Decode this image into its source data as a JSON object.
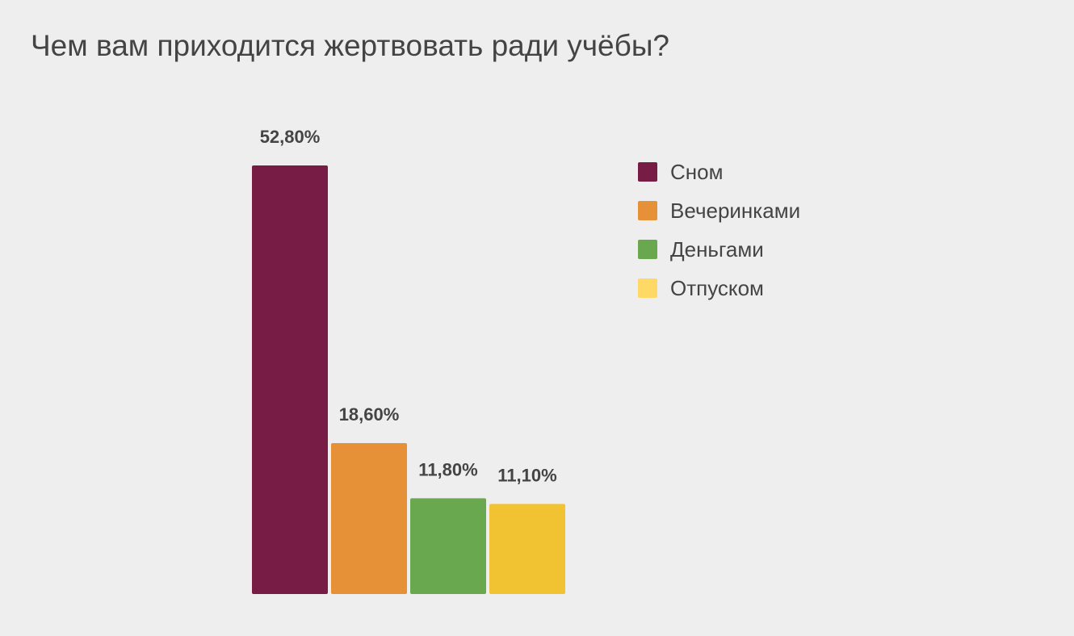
{
  "chart_data": {
    "type": "bar",
    "title": "Чем вам приходится жертвовать ради учёбы?",
    "xlabel": "",
    "ylabel": "",
    "ylim": [
      0,
      52.8
    ],
    "grid": false,
    "legend_position": "right",
    "categories": [
      "Сном",
      "Вечеринками",
      "Деньгами",
      "Отпуском"
    ],
    "values": [
      52.8,
      18.6,
      11.8,
      11.1
    ],
    "value_labels": [
      "52,80%",
      "18,60%",
      "11,80%",
      "11,10%"
    ],
    "bar_colors": [
      "#761c45",
      "#e69138",
      "#6aa84f",
      "#f1c232"
    ],
    "legend": [
      {
        "label": "Сном",
        "color": "#761c45"
      },
      {
        "label": "Вечеринками",
        "color": "#e69138"
      },
      {
        "label": "Деньгами",
        "color": "#6aa84f"
      },
      {
        "label": "Отпуском",
        "color": "#ffd966"
      }
    ]
  }
}
